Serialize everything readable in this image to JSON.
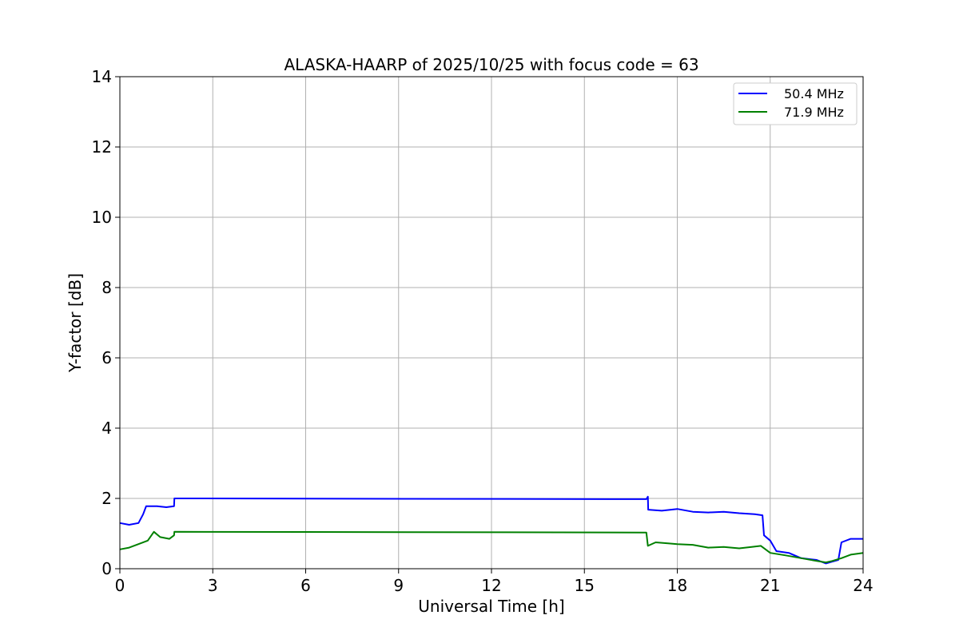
{
  "chart_data": {
    "type": "line",
    "title": "ALASKA-HAARP of 2025/10/25 with focus code = 63",
    "xlabel": "Universal Time [h]",
    "ylabel": "Y-factor [dB]",
    "xlim": [
      0,
      24
    ],
    "ylim": [
      0,
      14
    ],
    "xticks": [
      0,
      3,
      6,
      9,
      12,
      15,
      18,
      21,
      24
    ],
    "yticks": [
      0,
      2,
      4,
      6,
      8,
      10,
      12,
      14
    ],
    "grid": true,
    "legend_position": "top-right",
    "series": [
      {
        "name": "50.4 MHz",
        "color": "#0000ff",
        "points": [
          [
            0.0,
            1.3
          ],
          [
            0.3,
            1.25
          ],
          [
            0.6,
            1.3
          ],
          [
            0.75,
            1.55
          ],
          [
            0.85,
            1.78
          ],
          [
            1.2,
            1.78
          ],
          [
            1.5,
            1.75
          ],
          [
            1.75,
            1.78
          ],
          [
            1.76,
            2.0
          ],
          [
            17.0,
            1.98
          ],
          [
            17.05,
            2.05
          ],
          [
            17.06,
            1.68
          ],
          [
            17.5,
            1.65
          ],
          [
            18.0,
            1.7
          ],
          [
            18.5,
            1.62
          ],
          [
            19.0,
            1.6
          ],
          [
            19.5,
            1.62
          ],
          [
            20.0,
            1.58
          ],
          [
            20.5,
            1.55
          ],
          [
            20.75,
            1.52
          ],
          [
            20.8,
            0.95
          ],
          [
            21.0,
            0.8
          ],
          [
            21.2,
            0.5
          ],
          [
            21.6,
            0.45
          ],
          [
            22.0,
            0.3
          ],
          [
            22.5,
            0.25
          ],
          [
            22.8,
            0.15
          ],
          [
            23.0,
            0.2
          ],
          [
            23.2,
            0.25
          ],
          [
            23.3,
            0.75
          ],
          [
            23.6,
            0.85
          ],
          [
            24.0,
            0.85
          ]
        ]
      },
      {
        "name": "71.9 MHz",
        "color": "#008000",
        "points": [
          [
            0.0,
            0.55
          ],
          [
            0.3,
            0.6
          ],
          [
            0.6,
            0.7
          ],
          [
            0.9,
            0.8
          ],
          [
            1.1,
            1.05
          ],
          [
            1.3,
            0.9
          ],
          [
            1.6,
            0.85
          ],
          [
            1.75,
            0.95
          ],
          [
            1.76,
            1.05
          ],
          [
            17.0,
            1.03
          ],
          [
            17.05,
            0.65
          ],
          [
            17.3,
            0.75
          ],
          [
            17.7,
            0.72
          ],
          [
            18.0,
            0.7
          ],
          [
            18.5,
            0.68
          ],
          [
            19.0,
            0.6
          ],
          [
            19.5,
            0.62
          ],
          [
            20.0,
            0.58
          ],
          [
            20.4,
            0.62
          ],
          [
            20.7,
            0.65
          ],
          [
            21.0,
            0.45
          ],
          [
            21.5,
            0.38
          ],
          [
            22.0,
            0.3
          ],
          [
            22.5,
            0.22
          ],
          [
            22.8,
            0.18
          ],
          [
            23.0,
            0.22
          ],
          [
            23.3,
            0.3
          ],
          [
            23.6,
            0.4
          ],
          [
            24.0,
            0.45
          ]
        ]
      }
    ]
  }
}
